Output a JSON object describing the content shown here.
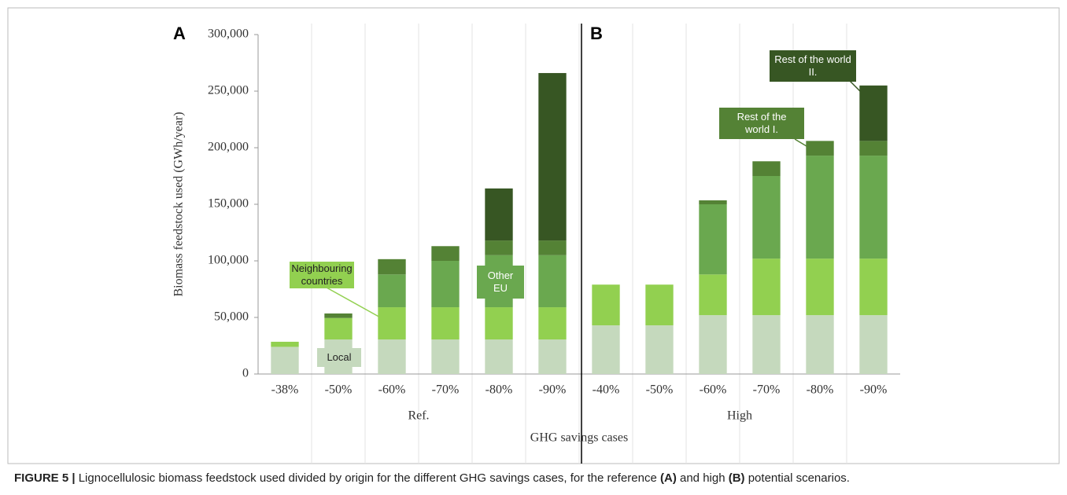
{
  "chart_data": {
    "type": "stacked_bar",
    "panels": [
      "A",
      "B"
    ],
    "groups": [
      "Ref.",
      "High"
    ],
    "categories": [
      "-38%",
      "-50%",
      "-60%",
      "-70%",
      "-80%",
      "-90%",
      "-40%",
      "-50%",
      "-60%",
      "-70%",
      "-80%",
      "-90%"
    ],
    "series": [
      {
        "name": "Local",
        "color": "#c5d9bd",
        "values": [
          24000,
          30500,
          30500,
          30500,
          30500,
          30500,
          43000,
          43000,
          52000,
          52000,
          52000,
          52000
        ]
      },
      {
        "name": "Neighbouring countries",
        "color": "#92d050",
        "values": [
          4500,
          19000,
          28500,
          28500,
          28500,
          28500,
          36000,
          36000,
          36000,
          50000,
          50000,
          50000
        ]
      },
      {
        "name": "Other EU",
        "color": "#6aa84f",
        "values": [
          0,
          0,
          29000,
          41000,
          46000,
          46000,
          0,
          0,
          62000,
          73000,
          91000,
          91000
        ]
      },
      {
        "name": "Rest of the world I.",
        "color": "#548235",
        "values": [
          0,
          4000,
          13500,
          13000,
          13000,
          13000,
          0,
          0,
          3500,
          13000,
          13000,
          13000
        ]
      },
      {
        "name": "Rest of the world II.",
        "color": "#375623",
        "values": [
          0,
          0,
          0,
          0,
          46000,
          148000,
          0,
          0,
          0,
          0,
          0,
          49000
        ]
      }
    ],
    "ylabel": "Biomass feedstock used (GWh/year)",
    "xlabel": "GHG savings cases",
    "ylim": [
      0,
      300000
    ],
    "yticks": [
      0,
      {
        "value": 50000,
        "label": "50,000"
      },
      {
        "value": 100000,
        "label": "100,000"
      },
      {
        "value": 150000,
        "label": "150,000"
      },
      {
        "value": 200000,
        "label": "200,000"
      },
      {
        "value": 250000,
        "label": "250,000"
      },
      {
        "value": 300000,
        "label": "300,000"
      }
    ],
    "grid": true
  },
  "caption": {
    "label": "FIGURE 5 |",
    "parts": [
      "Lignocellulosic biomass feedstock used divided by origin for the different GHG savings cases, for the reference ",
      "(A)",
      " and high ",
      "(B)",
      " potential scenarios."
    ]
  }
}
